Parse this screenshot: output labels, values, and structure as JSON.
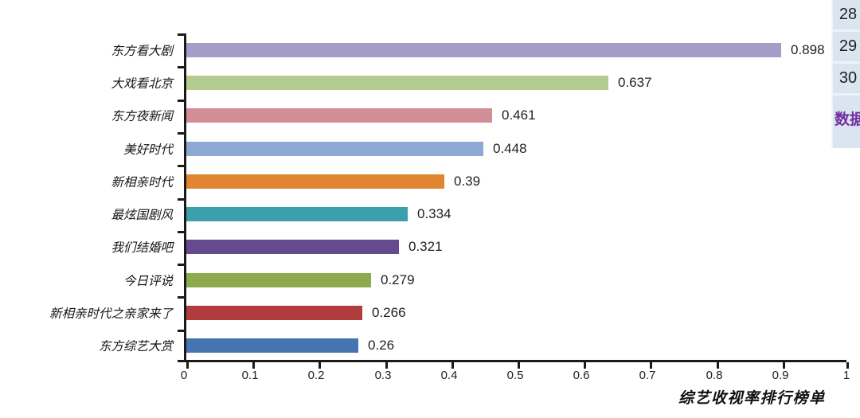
{
  "chart_data": {
    "type": "bar",
    "orientation": "horizontal",
    "title": "",
    "xlabel": "综艺收视率排行榜单",
    "ylabel": "",
    "xlim": [
      0,
      1
    ],
    "xticks": [
      0,
      0.1,
      0.2,
      0.3,
      0.4,
      0.5,
      0.6,
      0.7,
      0.8,
      0.9,
      1
    ],
    "xtick_labels": [
      "0",
      "0.1",
      "0.2",
      "0.3",
      "0.4",
      "0.5",
      "0.6",
      "0.7",
      "0.8",
      "0.9",
      "1"
    ],
    "categories": [
      "东方看大剧",
      "大戏看北京",
      "东方夜新闻",
      "美好时代",
      "新相亲时代",
      "最炫国剧风",
      "我们结婚吧",
      "今日评说",
      "新相亲时代之亲家来了",
      "东方综艺大赏"
    ],
    "values": [
      0.898,
      0.637,
      0.461,
      0.448,
      0.39,
      0.334,
      0.321,
      0.279,
      0.266,
      0.26
    ],
    "value_labels": [
      "0.898",
      "0.637",
      "0.461",
      "0.448",
      "0.39",
      "0.334",
      "0.321",
      "0.279",
      "0.266",
      "0.26"
    ],
    "bar_colors": [
      "#a69cc8",
      "#b5cc90",
      "#d28e95",
      "#8ea9d1",
      "#e08632",
      "#3ba0ac",
      "#654a8d",
      "#8bab4e",
      "#b13c3d",
      "#4674b1"
    ],
    "axis_color": "#1a1a1a",
    "grid": false,
    "legend": false
  },
  "spreadsheet": {
    "row_numbers": [
      "28",
      "29",
      "30"
    ],
    "sheet_tab_label": "数据",
    "panel_bg": "#dbe4f1",
    "tab_text_color": "#7030a0"
  }
}
